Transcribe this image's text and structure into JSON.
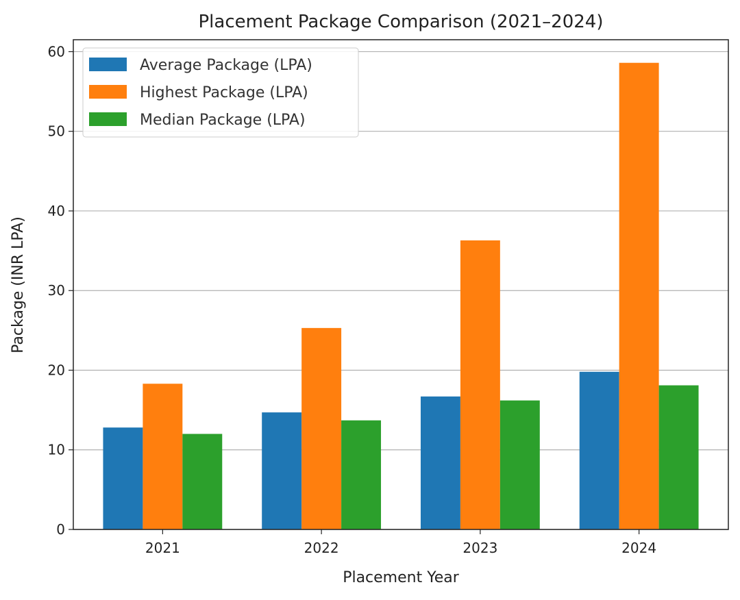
{
  "chart_data": {
    "type": "bar",
    "title": "Placement Package Comparison (2021–2024)",
    "xlabel": "Placement Year",
    "ylabel": "Package (INR LPA)",
    "categories": [
      "2021",
      "2022",
      "2023",
      "2024"
    ],
    "series": [
      {
        "name": "Average Package (LPA)",
        "color": "#1f77b4",
        "values": [
          12.8,
          14.7,
          16.7,
          19.8
        ]
      },
      {
        "name": "Highest Package (LPA)",
        "color": "#ff7f0e",
        "values": [
          18.3,
          25.3,
          36.3,
          58.6
        ]
      },
      {
        "name": "Median Package (LPA)",
        "color": "#2ca02c",
        "values": [
          12.0,
          13.7,
          16.2,
          18.1
        ]
      }
    ],
    "ylim": [
      0,
      61.5
    ],
    "yticks": [
      0,
      10,
      20,
      30,
      40,
      50,
      60
    ],
    "grid": "y",
    "legend": "top-left"
  }
}
